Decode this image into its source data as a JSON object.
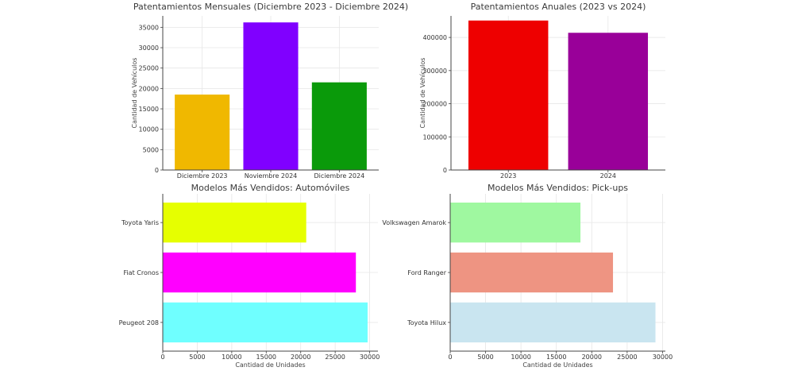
{
  "chart_data": [
    {
      "id": "monthly",
      "type": "bar",
      "orientation": "vertical",
      "title": "Patentamientos Mensuales (Diciembre 2023 - Diciembre 2024)",
      "xlabel": "",
      "ylabel": "Cantidad de Vehículos",
      "categories": [
        "Diciembre 2023",
        "Noviembre 2024",
        "Diciembre 2024"
      ],
      "values": [
        18500,
        36200,
        21500
      ],
      "colors": [
        "#f0b800",
        "#8000ff",
        "#0a9a0a"
      ],
      "ylim": [
        0,
        37800
      ],
      "yticks": [
        0,
        5000,
        10000,
        15000,
        20000,
        25000,
        30000,
        35000
      ],
      "grid": true,
      "legend": "none"
    },
    {
      "id": "annual",
      "type": "bar",
      "orientation": "vertical",
      "title": "Patentamientos Anuales (2023 vs 2024)",
      "xlabel": "",
      "ylabel": "Cantidad de Vehículos",
      "categories": [
        "2023",
        "2024"
      ],
      "values": [
        451000,
        414000
      ],
      "colors": [
        "#ee0000",
        "#990099"
      ],
      "ylim": [
        0,
        465000
      ],
      "yticks": [
        0,
        100000,
        200000,
        300000,
        400000
      ],
      "grid": true,
      "legend": "none"
    },
    {
      "id": "cars",
      "type": "bar",
      "orientation": "horizontal",
      "title": "Modelos Más Vendidos: Automóviles",
      "xlabel": "Cantidad de Unidades",
      "ylabel": "",
      "categories": [
        "Peugeot 208",
        "Fiat Cronos",
        "Toyota Yaris"
      ],
      "values": [
        29700,
        28000,
        20800
      ],
      "colors": [
        "#6fffff",
        "#ff00ff",
        "#e6ff00"
      ],
      "xlim": [
        0,
        31200
      ],
      "xticks": [
        0,
        5000,
        10000,
        15000,
        20000,
        25000,
        30000
      ],
      "grid": true,
      "legend": "none"
    },
    {
      "id": "pickups",
      "type": "bar",
      "orientation": "horizontal",
      "title": "Modelos Más Vendidos: Pick-ups",
      "xlabel": "Cantidad de Unidades",
      "ylabel": "",
      "categories": [
        "Toyota Hilux",
        "Ford Ranger",
        "Volkswagen Amarok"
      ],
      "values": [
        29000,
        23000,
        18400
      ],
      "colors": [
        "#c9e5f0",
        "#ee9482",
        "#9ff8a0"
      ],
      "xlim": [
        0,
        30400
      ],
      "xticks": [
        0,
        5000,
        10000,
        15000,
        20000,
        25000,
        30000
      ],
      "grid": true,
      "legend": "none"
    }
  ]
}
